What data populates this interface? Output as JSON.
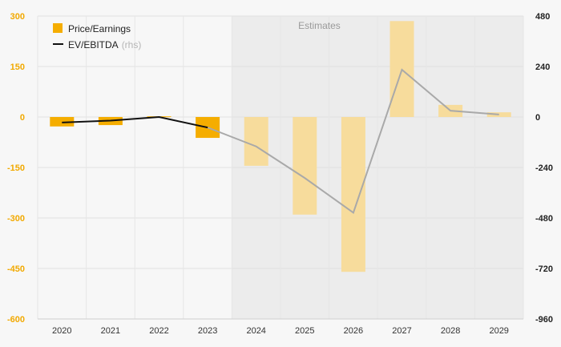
{
  "chart_data": {
    "type": "bar",
    "categories": [
      "2020",
      "2021",
      "2022",
      "2023",
      "2024",
      "2025",
      "2026",
      "2027",
      "2028",
      "2029"
    ],
    "estimates_label": "Estimates",
    "estimates_from": "2024",
    "left_axis": {
      "ticks": [
        "300",
        "150",
        "0",
        "-150",
        "-300",
        "-450",
        "-600"
      ],
      "ylim": [
        -600,
        300
      ]
    },
    "right_axis": {
      "ticks": [
        "480",
        "240",
        "0",
        "-240",
        "-480",
        "-720",
        "-960"
      ],
      "ylim": [
        -960,
        480
      ]
    },
    "series": [
      {
        "name": "Price/Earnings",
        "type": "bar",
        "axis": "left",
        "values": [
          -28,
          -24,
          2,
          -62,
          -145,
          -290,
          -460,
          285,
          36,
          14
        ]
      },
      {
        "name": "EV/EBITDA",
        "suffix": "(rhs)",
        "type": "line",
        "axis": "right",
        "values": [
          -26,
          -17,
          0,
          -50,
          -140,
          -290,
          -455,
          225,
          30,
          12
        ]
      }
    ],
    "colors": {
      "bar": "#f5ad00",
      "bar_estimate": "#f7dc9c",
      "line": "#111111",
      "line_estimate": "#a9a9a9",
      "estimate_bg": "#ececec"
    },
    "grid": true,
    "legend_position": "top-left"
  }
}
